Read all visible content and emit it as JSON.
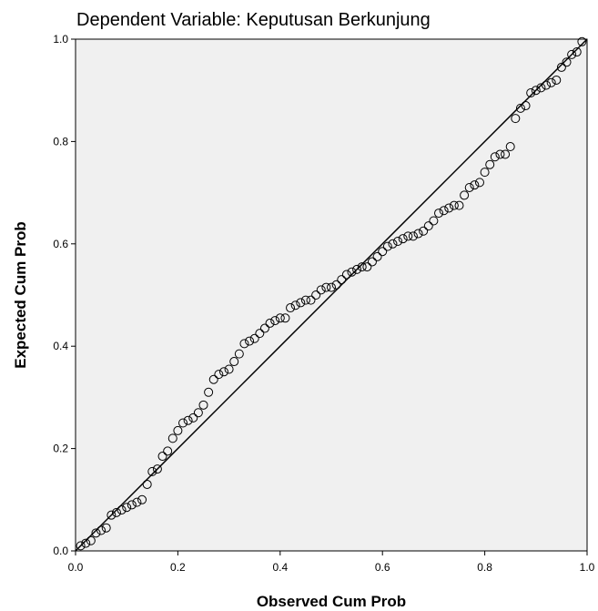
{
  "chart_data": {
    "type": "scatter",
    "title": "Dependent Variable: Keputusan Berkunjung",
    "xlabel": "Observed Cum Prob",
    "ylabel": "Expected Cum Prob",
    "xlim": [
      0.0,
      1.0
    ],
    "ylim": [
      0.0,
      1.0
    ],
    "xticks": [
      "0.0",
      "0.2",
      "0.4",
      "0.6",
      "0.8",
      "1.0"
    ],
    "yticks": [
      "0.0",
      "0.2",
      "0.4",
      "0.6",
      "0.8",
      "1.0"
    ],
    "grid": false,
    "legend": "none",
    "reference_line": {
      "x": [
        0.0,
        1.0
      ],
      "y": [
        0.0,
        1.0
      ]
    },
    "colors": {
      "plot_background": "#f0f0f0",
      "marker_stroke": "#000000",
      "line": "#000000",
      "axis": "#000000"
    },
    "points": [
      [
        0.01,
        0.01
      ],
      [
        0.02,
        0.015
      ],
      [
        0.03,
        0.02
      ],
      [
        0.04,
        0.035
      ],
      [
        0.05,
        0.04
      ],
      [
        0.06,
        0.045
      ],
      [
        0.07,
        0.07
      ],
      [
        0.08,
        0.075
      ],
      [
        0.09,
        0.08
      ],
      [
        0.1,
        0.085
      ],
      [
        0.11,
        0.09
      ],
      [
        0.12,
        0.095
      ],
      [
        0.13,
        0.1
      ],
      [
        0.14,
        0.13
      ],
      [
        0.15,
        0.155
      ],
      [
        0.16,
        0.16
      ],
      [
        0.17,
        0.185
      ],
      [
        0.18,
        0.195
      ],
      [
        0.19,
        0.22
      ],
      [
        0.2,
        0.235
      ],
      [
        0.21,
        0.25
      ],
      [
        0.22,
        0.255
      ],
      [
        0.23,
        0.26
      ],
      [
        0.24,
        0.27
      ],
      [
        0.25,
        0.285
      ],
      [
        0.26,
        0.31
      ],
      [
        0.27,
        0.335
      ],
      [
        0.28,
        0.345
      ],
      [
        0.29,
        0.35
      ],
      [
        0.3,
        0.355
      ],
      [
        0.31,
        0.37
      ],
      [
        0.32,
        0.385
      ],
      [
        0.33,
        0.405
      ],
      [
        0.34,
        0.41
      ],
      [
        0.35,
        0.415
      ],
      [
        0.36,
        0.425
      ],
      [
        0.37,
        0.435
      ],
      [
        0.38,
        0.445
      ],
      [
        0.39,
        0.45
      ],
      [
        0.4,
        0.455
      ],
      [
        0.41,
        0.455
      ],
      [
        0.42,
        0.475
      ],
      [
        0.43,
        0.48
      ],
      [
        0.44,
        0.485
      ],
      [
        0.45,
        0.49
      ],
      [
        0.46,
        0.49
      ],
      [
        0.47,
        0.5
      ],
      [
        0.48,
        0.51
      ],
      [
        0.49,
        0.515
      ],
      [
        0.5,
        0.515
      ],
      [
        0.51,
        0.52
      ],
      [
        0.52,
        0.53
      ],
      [
        0.53,
        0.54
      ],
      [
        0.54,
        0.545
      ],
      [
        0.55,
        0.55
      ],
      [
        0.56,
        0.555
      ],
      [
        0.57,
        0.555
      ],
      [
        0.58,
        0.565
      ],
      [
        0.59,
        0.575
      ],
      [
        0.6,
        0.585
      ],
      [
        0.61,
        0.595
      ],
      [
        0.62,
        0.6
      ],
      [
        0.63,
        0.605
      ],
      [
        0.64,
        0.61
      ],
      [
        0.65,
        0.615
      ],
      [
        0.66,
        0.615
      ],
      [
        0.67,
        0.62
      ],
      [
        0.68,
        0.625
      ],
      [
        0.69,
        0.635
      ],
      [
        0.7,
        0.645
      ],
      [
        0.71,
        0.66
      ],
      [
        0.72,
        0.665
      ],
      [
        0.73,
        0.67
      ],
      [
        0.74,
        0.675
      ],
      [
        0.75,
        0.675
      ],
      [
        0.76,
        0.695
      ],
      [
        0.77,
        0.71
      ],
      [
        0.78,
        0.715
      ],
      [
        0.79,
        0.72
      ],
      [
        0.8,
        0.74
      ],
      [
        0.81,
        0.755
      ],
      [
        0.82,
        0.77
      ],
      [
        0.83,
        0.775
      ],
      [
        0.84,
        0.775
      ],
      [
        0.85,
        0.79
      ],
      [
        0.86,
        0.845
      ],
      [
        0.87,
        0.865
      ],
      [
        0.88,
        0.87
      ],
      [
        0.89,
        0.895
      ],
      [
        0.9,
        0.9
      ],
      [
        0.91,
        0.905
      ],
      [
        0.92,
        0.91
      ],
      [
        0.93,
        0.915
      ],
      [
        0.94,
        0.92
      ],
      [
        0.95,
        0.945
      ],
      [
        0.96,
        0.955
      ],
      [
        0.97,
        0.97
      ],
      [
        0.98,
        0.975
      ],
      [
        0.99,
        0.995
      ]
    ]
  }
}
